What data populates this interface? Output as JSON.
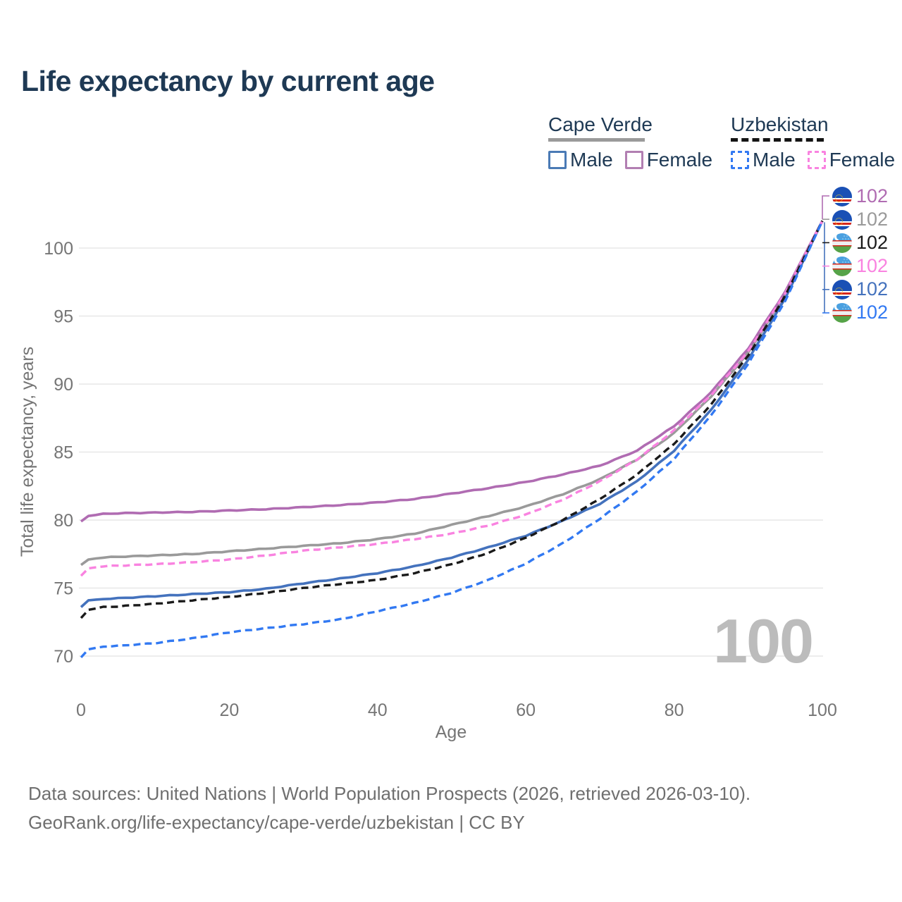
{
  "title": "Life expectancy by current age",
  "legend": {
    "cape_verde": {
      "name": "Cape Verde",
      "male_label": "Male",
      "female_label": "Female"
    },
    "uzbekistan": {
      "name": "Uzbekistan",
      "male_label": "Male",
      "female_label": "Female"
    }
  },
  "colors": {
    "cv_female": "#b06cb2",
    "cv_total": "#9a9a9a",
    "uz_total": "#1a1a1a",
    "uz_female": "#f983e0",
    "cv_male": "#4472bd",
    "uz_male": "#3279f2",
    "grid": "#e7e7e7",
    "axis_text": "#757575",
    "title_text": "#1e3954",
    "watermark": "#bcbcbc"
  },
  "chart_data": {
    "type": "line",
    "title": "Life expectancy by current age",
    "xlabel": "Age",
    "ylabel": "Total life expectancy, years",
    "xlim": [
      0,
      100
    ],
    "ylim": [
      68.5,
      103.5
    ],
    "x_ticks": [
      0,
      20,
      40,
      60,
      80,
      100
    ],
    "y_ticks": [
      70,
      75,
      80,
      85,
      90,
      95,
      100
    ],
    "grid": "horizontal",
    "legend_position": "top-right",
    "x": [
      0,
      1,
      3,
      5,
      10,
      15,
      20,
      25,
      30,
      35,
      40,
      45,
      50,
      55,
      60,
      65,
      70,
      75,
      80,
      85,
      90,
      95,
      100
    ],
    "series": [
      {
        "name": "Cape Verde Total",
        "key": "cv_total",
        "line": "solid",
        "values": [
          76.7,
          77.1,
          77.25,
          77.3,
          77.4,
          77.5,
          77.7,
          77.9,
          78.1,
          78.3,
          78.6,
          79.0,
          79.65,
          80.3,
          81.0,
          81.9,
          83.0,
          84.45,
          86.4,
          89.1,
          92.3,
          96.6,
          102
        ]
      },
      {
        "name": "Cape Verde Female",
        "key": "cv_female",
        "line": "solid",
        "values": [
          79.9,
          80.3,
          80.45,
          80.5,
          80.55,
          80.6,
          80.7,
          80.8,
          80.95,
          81.1,
          81.3,
          81.55,
          81.95,
          82.35,
          82.8,
          83.35,
          84.0,
          85.1,
          86.9,
          89.4,
          92.6,
          96.8,
          102
        ]
      },
      {
        "name": "Cape Verde Male",
        "key": "cv_male",
        "line": "solid",
        "values": [
          73.6,
          74.1,
          74.2,
          74.25,
          74.4,
          74.55,
          74.7,
          74.95,
          75.35,
          75.7,
          76.1,
          76.6,
          77.25,
          78.0,
          78.85,
          79.95,
          81.2,
          82.85,
          85.1,
          88.1,
          91.8,
          96.3,
          102
        ]
      },
      {
        "name": "Uzbekistan Female",
        "key": "uz_female",
        "line": "dashed",
        "values": [
          75.9,
          76.45,
          76.6,
          76.65,
          76.75,
          76.9,
          77.1,
          77.4,
          77.75,
          78.0,
          78.25,
          78.6,
          79.0,
          79.6,
          80.4,
          81.5,
          82.85,
          84.45,
          86.6,
          89.2,
          92.4,
          96.7,
          102
        ]
      },
      {
        "name": "Uzbekistan Total",
        "key": "uz_total",
        "line": "dashed",
        "values": [
          72.8,
          73.4,
          73.6,
          73.65,
          73.85,
          74.1,
          74.35,
          74.65,
          75.0,
          75.3,
          75.6,
          76.1,
          76.75,
          77.6,
          78.7,
          80.0,
          81.55,
          83.35,
          85.6,
          88.5,
          92.1,
          96.5,
          102
        ]
      },
      {
        "name": "Uzbekistan Male",
        "key": "uz_male",
        "line": "dashed",
        "values": [
          69.9,
          70.5,
          70.7,
          70.75,
          70.95,
          71.3,
          71.75,
          72.05,
          72.35,
          72.7,
          73.3,
          73.9,
          74.65,
          75.6,
          76.8,
          78.3,
          80.1,
          82.1,
          84.5,
          87.7,
          91.5,
          96.1,
          102
        ]
      }
    ],
    "end_labels": [
      {
        "flag": "cape-verde",
        "series": "cv_female",
        "value": "102"
      },
      {
        "flag": "cape-verde",
        "series": "cv_total",
        "value": "102"
      },
      {
        "flag": "uzbekistan",
        "series": "uz_total",
        "value": "102"
      },
      {
        "flag": "uzbekistan",
        "series": "uz_female",
        "value": "102"
      },
      {
        "flag": "cape-verde",
        "series": "cv_male",
        "value": "102"
      },
      {
        "flag": "uzbekistan",
        "series": "uz_male",
        "value": "102"
      }
    ],
    "watermark": "100"
  },
  "footer": {
    "line1": "Data sources: United Nations | World Population Prospects (2026, retrieved 2026-03-10).",
    "line2": "GeoRank.org/life-expectancy/cape-verde/uzbekistan | CC BY"
  }
}
